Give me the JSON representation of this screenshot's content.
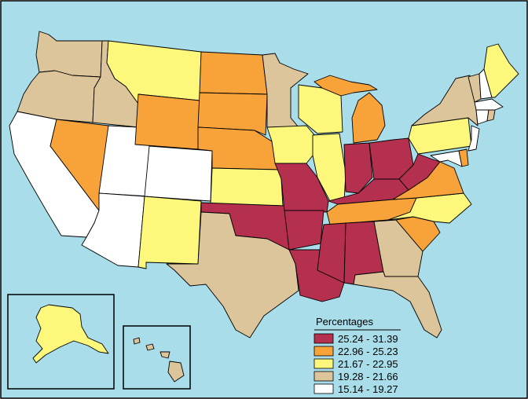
{
  "map": {
    "colors": {
      "ocean": "#a8dde9",
      "class_1": "#b5304f",
      "class_2": "#f8a23a",
      "class_3": "#fdf77b",
      "class_4": "#ddc59b",
      "class_5": "#ffffff"
    },
    "legend": {
      "title": "Percentages",
      "classes": [
        {
          "label": "25.24 - 31.39",
          "color": "#b5304f"
        },
        {
          "label": "22.96 - 25.23",
          "color": "#f8a23a"
        },
        {
          "label": "21.67 - 22.95",
          "color": "#fdf77b"
        },
        {
          "label": "19.28 - 21.66",
          "color": "#ddc59b"
        },
        {
          "label": "15.14 - 19.27",
          "color": "#ffffff"
        }
      ]
    },
    "states": {
      "washington": "class_4",
      "oregon": "class_4",
      "california": "class_5",
      "idaho": "class_4",
      "nevada": "class_2",
      "utah": "class_5",
      "arizona": "class_5",
      "montana": "class_3",
      "wyoming": "class_2",
      "colorado": "class_5",
      "new-mexico": "class_3",
      "north-dakota": "class_2",
      "south-dakota": "class_2",
      "nebraska": "class_2",
      "kansas": "class_3",
      "oklahoma": "class_1",
      "texas": "class_4",
      "minnesota": "class_4",
      "iowa": "class_3",
      "missouri": "class_1",
      "arkansas": "class_1",
      "louisiana": "class_1",
      "wisconsin": "class_3",
      "illinois": "class_3",
      "michigan": "class_2",
      "indiana": "class_1",
      "ohio": "class_1",
      "kentucky": "class_1",
      "tennessee": "class_2",
      "mississippi": "class_1",
      "alabama": "class_1",
      "georgia": "class_4",
      "florida": "class_4",
      "south-carolina": "class_2",
      "north-carolina": "class_3",
      "virginia": "class_2",
      "west-virginia": "class_1",
      "pennsylvania": "class_3",
      "new-york": "class_4",
      "vermont": "class_4",
      "new-hampshire": "class_5",
      "maine": "class_3",
      "massachusetts": "class_5",
      "rhode-island": "class_4",
      "connecticut": "class_5",
      "new-jersey": "class_5",
      "delaware": "class_2",
      "maryland": "class_5",
      "alaska": "class_3",
      "hawaii": "class_4"
    }
  }
}
